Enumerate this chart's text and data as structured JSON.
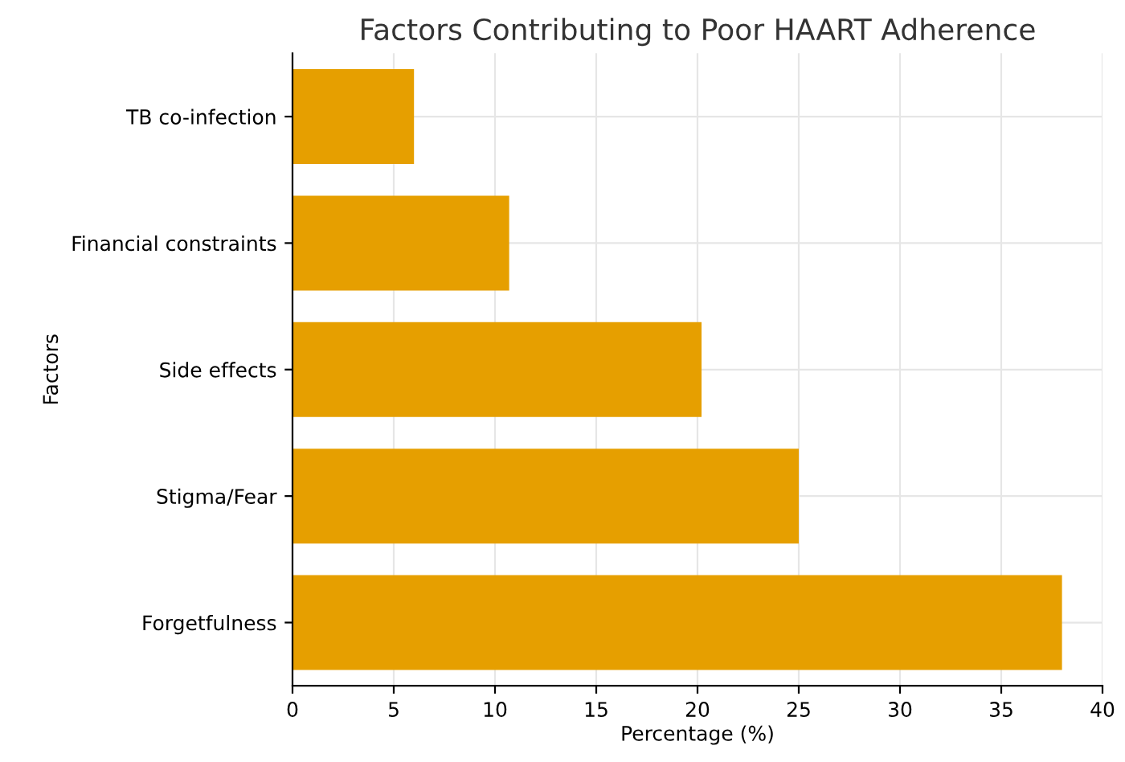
{
  "chart_data": {
    "type": "bar",
    "orientation": "horizontal",
    "title": "Factors Contributing to Poor HAART Adherence",
    "xlabel": "Percentage (%)",
    "ylabel": "Factors",
    "categories": [
      "TB co-infection",
      "Financial constraints",
      "Side effects",
      "Stigma/Fear",
      "Forgetfulness"
    ],
    "values": [
      6,
      10.7,
      20.2,
      25,
      38
    ],
    "color": "#e69f00",
    "xlim": [
      0,
      40
    ],
    "xticks": [
      0,
      5,
      10,
      15,
      20,
      25,
      30,
      35,
      40
    ],
    "grid": true
  }
}
